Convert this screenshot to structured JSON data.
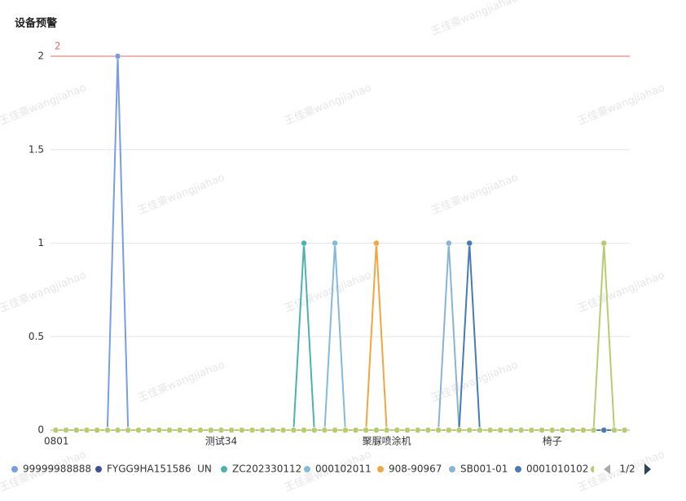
{
  "chart_data": {
    "type": "line",
    "title": "设备预警",
    "watermark": "王佳豪wangjiahao",
    "categories": [
      "0801",
      null,
      null,
      null,
      null,
      null,
      null,
      null,
      null,
      null,
      null,
      null,
      null,
      null,
      null,
      null,
      "测试34",
      null,
      null,
      null,
      null,
      null,
      null,
      null,
      null,
      null,
      null,
      null,
      null,
      null,
      null,
      null,
      "聚脲喷涂机",
      null,
      null,
      null,
      null,
      null,
      null,
      null,
      null,
      null,
      null,
      null,
      null,
      null,
      null,
      null,
      "椅子",
      null,
      null,
      null,
      null,
      null,
      null,
      null
    ],
    "ylim": [
      0,
      2
    ],
    "yticks": [
      0,
      0.5,
      1,
      1.5,
      2
    ],
    "grid": true,
    "markline": {
      "value": 2,
      "color": "#e0675f"
    },
    "legend_page": "1/2",
    "series": [
      {
        "name": "99999988888",
        "color": "#7b9ce1",
        "values": [
          0,
          0,
          0,
          0,
          0,
          0,
          2,
          0,
          0,
          0,
          0,
          0,
          0,
          0,
          0,
          0,
          0,
          0,
          0,
          0,
          0,
          0,
          0,
          0,
          0,
          0,
          0,
          0,
          0,
          0,
          0,
          0,
          0,
          0,
          0,
          0,
          0,
          0,
          0,
          0,
          0,
          0,
          0,
          0,
          0,
          0,
          0,
          0,
          0,
          0,
          0,
          0,
          0,
          0,
          0,
          0
        ]
      },
      {
        "name": "FYGG9HA151586  UN",
        "color": "#3d4fa0",
        "values": [
          0,
          0,
          0,
          0,
          0,
          0,
          0,
          0,
          0,
          0,
          0,
          0,
          0,
          0,
          0,
          0,
          0,
          0,
          0,
          0,
          0,
          0,
          0,
          0,
          0,
          0,
          0,
          0,
          0,
          0,
          0,
          0,
          0,
          0,
          0,
          0,
          0,
          0,
          0,
          0,
          0,
          0,
          0,
          0,
          0,
          0,
          0,
          0,
          0,
          0,
          0,
          0,
          0,
          0,
          0,
          0
        ]
      },
      {
        "name": "ZC202330112",
        "color": "#4bb3ad",
        "values": [
          0,
          0,
          0,
          0,
          0,
          0,
          0,
          0,
          0,
          0,
          0,
          0,
          0,
          0,
          0,
          0,
          0,
          0,
          0,
          0,
          0,
          0,
          0,
          0,
          1,
          0,
          0,
          0,
          0,
          0,
          0,
          0,
          0,
          0,
          0,
          0,
          0,
          0,
          0,
          0,
          0,
          0,
          0,
          0,
          0,
          0,
          0,
          0,
          0,
          0,
          0,
          0,
          0,
          0,
          0,
          0
        ]
      },
      {
        "name": "000102011",
        "color": "#86bad9",
        "values": [
          0,
          0,
          0,
          0,
          0,
          0,
          0,
          0,
          0,
          0,
          0,
          0,
          0,
          0,
          0,
          0,
          0,
          0,
          0,
          0,
          0,
          0,
          0,
          0,
          0,
          0,
          0,
          1,
          0,
          0,
          0,
          0,
          0,
          0,
          0,
          0,
          0,
          0,
          0,
          0,
          0,
          0,
          0,
          0,
          0,
          0,
          0,
          0,
          0,
          0,
          0,
          0,
          0,
          0,
          0,
          0
        ]
      },
      {
        "name": "908-90967",
        "color": "#f4a540",
        "values": [
          0,
          0,
          0,
          0,
          0,
          0,
          0,
          0,
          0,
          0,
          0,
          0,
          0,
          0,
          0,
          0,
          0,
          0,
          0,
          0,
          0,
          0,
          0,
          0,
          0,
          0,
          0,
          0,
          0,
          0,
          0,
          1,
          0,
          0,
          0,
          0,
          0,
          0,
          0,
          0,
          0,
          0,
          0,
          0,
          0,
          0,
          0,
          0,
          0,
          0,
          0,
          0,
          0,
          0,
          0,
          0
        ]
      },
      {
        "name": "SB001-01",
        "color": "#8ab4d2",
        "values": [
          0,
          0,
          0,
          0,
          0,
          0,
          0,
          0,
          0,
          0,
          0,
          0,
          0,
          0,
          0,
          0,
          0,
          0,
          0,
          0,
          0,
          0,
          0,
          0,
          0,
          0,
          0,
          0,
          0,
          0,
          0,
          0,
          0,
          0,
          0,
          0,
          0,
          0,
          1,
          0,
          0,
          0,
          0,
          0,
          0,
          0,
          0,
          0,
          0,
          0,
          0,
          0,
          0,
          0,
          0,
          0
        ]
      },
      {
        "name": "0001010102",
        "color": "#4a7ab5",
        "values": [
          0,
          0,
          0,
          0,
          0,
          0,
          0,
          0,
          0,
          0,
          0,
          0,
          0,
          0,
          0,
          0,
          0,
          0,
          0,
          0,
          0,
          0,
          0,
          0,
          0,
          0,
          0,
          0,
          0,
          0,
          0,
          0,
          0,
          0,
          0,
          0,
          0,
          0,
          0,
          0,
          1,
          0,
          0,
          0,
          0,
          0,
          0,
          0,
          0,
          0,
          0,
          0,
          0,
          0,
          0,
          0
        ]
      },
      {
        "name": null,
        "color": "#b6cc6e",
        "values": [
          0,
          0,
          0,
          0,
          0,
          0,
          0,
          0,
          0,
          0,
          0,
          0,
          0,
          0,
          0,
          0,
          0,
          0,
          0,
          0,
          0,
          0,
          0,
          0,
          0,
          0,
          0,
          0,
          0,
          0,
          0,
          0,
          0,
          0,
          0,
          0,
          0,
          0,
          0,
          0,
          0,
          0,
          0,
          0,
          0,
          0,
          0,
          0,
          0,
          0,
          0,
          0,
          0,
          1,
          0,
          0
        ]
      }
    ]
  }
}
